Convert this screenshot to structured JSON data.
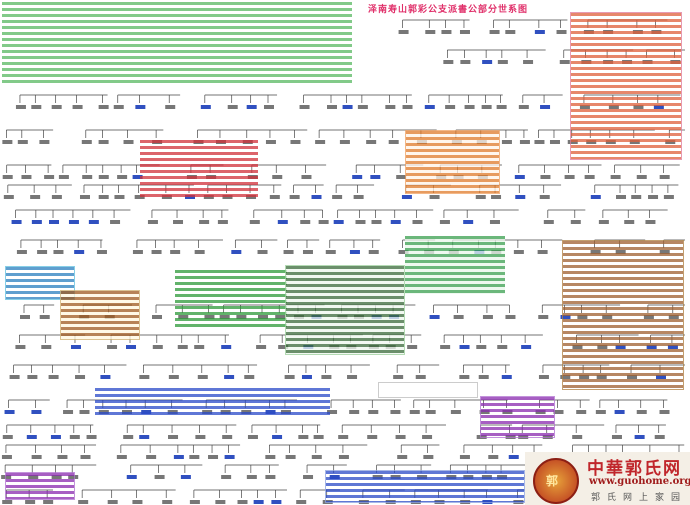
{
  "chart_title": "泽南寿山郭彩公支派書公部分世系图",
  "watermark": {
    "site_name": "中華郭氏网",
    "url": "www.guohome.org",
    "slogan": "郭氏网上家园",
    "seal_text": "郭"
  },
  "colors": {
    "title": "#e0306a",
    "intro_text": "#2e9a3a",
    "notes_red": "#d0303a",
    "notes_orange": "#e07a2a",
    "notes_blue": "#2a4ac8",
    "notes_purple": "#8a2ab0",
    "lines": "#333333"
  }
}
